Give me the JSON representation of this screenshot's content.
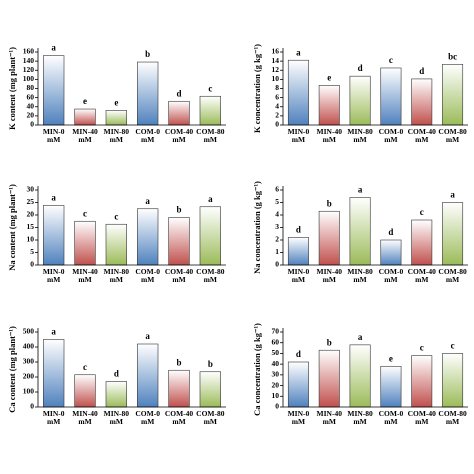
{
  "chart_data": [
    {
      "type": "bar",
      "ylabel": "K content (mg plant⁻¹)",
      "categories": [
        "MIN-0 mM",
        "MIN-40 mM",
        "MIN-80 mM",
        "COM-0 mM",
        "COM-40 mM",
        "COM-80 mM"
      ],
      "values": [
        152,
        35,
        32,
        138,
        52,
        63
      ],
      "annotations": [
        "a",
        "e",
        "e",
        "b",
        "d",
        "c"
      ],
      "colors": [
        "#4f81bd",
        "#c0504d",
        "#9bbb59",
        "#4f81bd",
        "#c0504d",
        "#9bbb59"
      ],
      "ylim": [
        0,
        160
      ],
      "yticks": [
        0,
        20,
        40,
        60,
        80,
        100,
        120,
        140,
        160
      ]
    },
    {
      "type": "bar",
      "ylabel": "K concentration (g kg⁻¹)",
      "categories": [
        "MIN-0 mM",
        "MIN-40 mM",
        "MIN-80 mM",
        "COM-0 mM",
        "COM-40 mM",
        "COM-80 mM"
      ],
      "values": [
        14.2,
        8.7,
        10.7,
        12.5,
        10.1,
        13.3
      ],
      "annotations": [
        "a",
        "e",
        "d",
        "c",
        "d",
        "bc"
      ],
      "colors": [
        "#4f81bd",
        "#c0504d",
        "#9bbb59",
        "#4f81bd",
        "#c0504d",
        "#9bbb59"
      ],
      "ylim": [
        0,
        16
      ],
      "yticks": [
        0,
        2,
        4,
        6,
        8,
        10,
        12,
        14,
        16
      ]
    },
    {
      "type": "bar",
      "ylabel": "Na content (mg plant⁻¹)",
      "categories": [
        "MIN-0 mM",
        "MIN-40 mM",
        "MIN-80 mM",
        "COM-0 mM",
        "COM-40 mM",
        "COM-80 mM"
      ],
      "values": [
        23.8,
        17.5,
        16.3,
        22.5,
        19.0,
        23.3
      ],
      "annotations": [
        "a",
        "c",
        "c",
        "a",
        "b",
        "a"
      ],
      "colors": [
        "#4f81bd",
        "#c0504d",
        "#9bbb59",
        "#4f81bd",
        "#c0504d",
        "#9bbb59"
      ],
      "ylim": [
        0,
        30
      ],
      "yticks": [
        0,
        5,
        10,
        15,
        20,
        25,
        30
      ]
    },
    {
      "type": "bar",
      "ylabel": "Na concentration (g kg⁻¹)",
      "categories": [
        "MIN-0 mM",
        "MIN-40 mM",
        "MIN-80 mM",
        "COM-0 mM",
        "COM-40 mM",
        "COM-80 mM"
      ],
      "values": [
        2.2,
        4.3,
        5.4,
        2.0,
        3.6,
        5.0
      ],
      "annotations": [
        "d",
        "b",
        "a",
        "d",
        "c",
        "a"
      ],
      "colors": [
        "#4f81bd",
        "#c0504d",
        "#9bbb59",
        "#4f81bd",
        "#c0504d",
        "#9bbb59"
      ],
      "ylim": [
        0,
        6
      ],
      "yticks": [
        0,
        1,
        2,
        3,
        4,
        5,
        6
      ]
    },
    {
      "type": "bar",
      "ylabel": "Ca content (mg plant⁻¹)",
      "categories": [
        "MIN-0 mM",
        "MIN-40 mM",
        "MIN-80 mM",
        "COM-0 mM",
        "COM-40 mM",
        "COM-80 mM"
      ],
      "values": [
        450,
        215,
        170,
        420,
        245,
        235
      ],
      "annotations": [
        "a",
        "c",
        "d",
        "a",
        "b",
        "b"
      ],
      "colors": [
        "#4f81bd",
        "#c0504d",
        "#9bbb59",
        "#4f81bd",
        "#c0504d",
        "#9bbb59"
      ],
      "ylim": [
        0,
        500
      ],
      "yticks": [
        0,
        100,
        200,
        300,
        400,
        500
      ]
    },
    {
      "type": "bar",
      "ylabel": "Ca concentration (g kg⁻¹)",
      "categories": [
        "MIN-0 mM",
        "MIN-40 mM",
        "MIN-80 mM",
        "COM-0 mM",
        "COM-40 mM",
        "COM-80 mM"
      ],
      "values": [
        42,
        53,
        58,
        38,
        48,
        50
      ],
      "annotations": [
        "d",
        "b",
        "a",
        "e",
        "c",
        "c"
      ],
      "colors": [
        "#4f81bd",
        "#c0504d",
        "#9bbb59",
        "#4f81bd",
        "#c0504d",
        "#9bbb59"
      ],
      "ylim": [
        0,
        70
      ],
      "yticks": [
        0,
        10,
        20,
        30,
        40,
        50,
        60,
        70
      ]
    }
  ]
}
